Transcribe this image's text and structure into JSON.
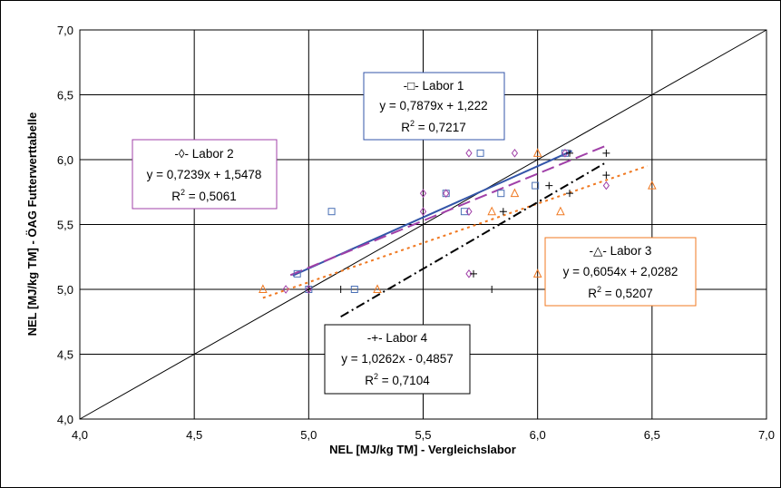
{
  "chart_data": {
    "type": "scatter",
    "xlabel": "NEL [MJ/kg TM] - Vergleichslabor",
    "ylabel": "NEL [MJ/kg TM] - ÖAG Futterwerttabelle",
    "xlim": [
      4.0,
      7.0
    ],
    "ylim": [
      4.0,
      7.0
    ],
    "x_ticks": [
      "4,0",
      "4,5",
      "5,0",
      "5,5",
      "6,0",
      "6,5",
      "7,0"
    ],
    "y_ticks": [
      "4,0",
      "4,5",
      "5,0",
      "5,5",
      "6,0",
      "6,5",
      "7,0"
    ],
    "grid": true,
    "reference_line": {
      "x": [
        4.0,
        7.0
      ],
      "y": [
        4.0,
        7.0
      ],
      "color": "#000000"
    },
    "series": [
      {
        "name": "Labor 1",
        "marker": "square",
        "color": "#4a6fb5",
        "points": [
          [
            4.95,
            5.12
          ],
          [
            5.0,
            5.0
          ],
          [
            5.1,
            5.6
          ],
          [
            5.2,
            5.0
          ],
          [
            5.6,
            5.74
          ],
          [
            5.68,
            5.6
          ],
          [
            5.75,
            6.05
          ],
          [
            5.84,
            5.74
          ],
          [
            5.99,
            5.8
          ],
          [
            6.12,
            6.05
          ]
        ],
        "trend": {
          "x": [
            4.93,
            6.15
          ],
          "equation": "y = 0,7879x + 1,222",
          "r2": "R2 = 0,7217",
          "legend": "-□- Labor 1",
          "color": "#3355a8",
          "dash": ""
        }
      },
      {
        "name": "Labor 2",
        "marker": "diamond",
        "color": "#a040a8",
        "points": [
          [
            4.9,
            5.0
          ],
          [
            5.0,
            5.0
          ],
          [
            5.5,
            5.74
          ],
          [
            5.5,
            5.6
          ],
          [
            5.6,
            5.74
          ],
          [
            5.7,
            6.05
          ],
          [
            5.7,
            5.6
          ],
          [
            5.7,
            5.12
          ],
          [
            5.9,
            6.05
          ],
          [
            6.12,
            6.05
          ],
          [
            6.3,
            5.8
          ]
        ],
        "trend": {
          "x": [
            4.92,
            6.3
          ],
          "equation": "y = 0,7239x + 1,5478",
          "r2": "R2 = 0,5061",
          "legend": "-◊- Labor 2",
          "color": "#a040a8",
          "dash": "14,6"
        }
      },
      {
        "name": "Labor 3",
        "marker": "triangle",
        "color": "#f07820",
        "points": [
          [
            4.8,
            5.0
          ],
          [
            5.3,
            5.0
          ],
          [
            5.8,
            5.6
          ],
          [
            5.9,
            5.74
          ],
          [
            6.0,
            6.05
          ],
          [
            6.0,
            5.12
          ],
          [
            6.1,
            5.6
          ],
          [
            6.5,
            5.8
          ]
        ],
        "trend": {
          "x": [
            4.8,
            6.48
          ],
          "equation": "y = 0,6054x + 2,0282",
          "r2": "R2 = 0,5207",
          "legend": "-△- Labor 3",
          "color": "#f07820",
          "dash": "3,4"
        }
      },
      {
        "name": "Labor 4",
        "marker": "plus",
        "color": "#000000",
        "points": [
          [
            5.14,
            5.0
          ],
          [
            5.72,
            5.12
          ],
          [
            5.8,
            5.0
          ],
          [
            5.85,
            5.6
          ],
          [
            6.05,
            5.8
          ],
          [
            6.14,
            5.74
          ],
          [
            6.14,
            6.05
          ],
          [
            6.3,
            6.05
          ],
          [
            6.3,
            5.88
          ]
        ],
        "trend": {
          "x": [
            5.14,
            6.3
          ],
          "equation": "y = 1,0262x - 0,4857",
          "r2": "R2 = 0,7104",
          "legend": "-+- Labor 4",
          "color": "#000000",
          "dash": "10,4,2,4"
        }
      }
    ]
  },
  "labels": {
    "labor1": {
      "title": "-□-  Labor 1",
      "eq": "y = 0,7879x + 1,222",
      "r2_base": "R",
      "r2_sup": "2",
      "r2_rest": " = 0,7217"
    },
    "labor2": {
      "title": "-◊-  Labor 2",
      "eq": "y = 0,7239x + 1,5478",
      "r2_base": "R",
      "r2_sup": "2",
      "r2_rest": " = 0,5061"
    },
    "labor3": {
      "title": "-△-  Labor 3",
      "eq": "y = 0,6054x + 2,0282",
      "r2_base": "R",
      "r2_sup": "2",
      "r2_rest": " = 0,5207"
    },
    "labor4": {
      "title": "-+-  Labor 4",
      "eq": "y = 1,0262x - 0,4857",
      "r2_base": "R",
      "r2_sup": "2",
      "r2_rest": " = 0,7104"
    }
  }
}
